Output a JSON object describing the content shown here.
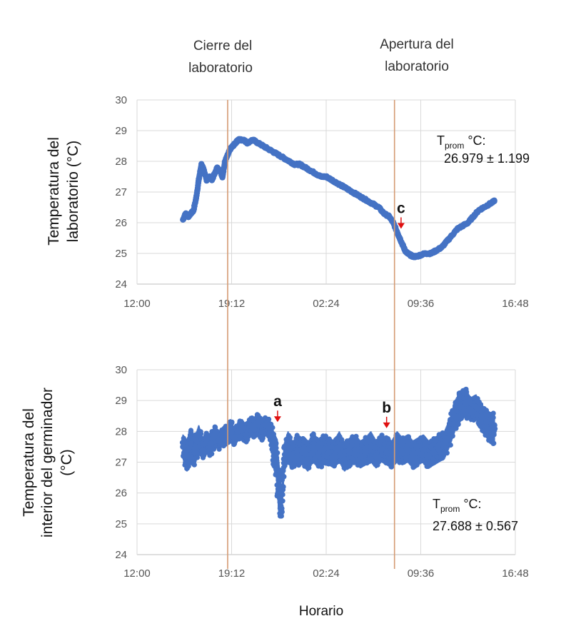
{
  "annotations": {
    "close_label": [
      "Cierre del",
      "laboratorio"
    ],
    "open_label": [
      "Apertura del",
      "laboratorio"
    ]
  },
  "x_common_label": "Horario",
  "colors": {
    "series": "#4472C4",
    "vline": "#D59B73",
    "arrow": "#E01010",
    "grid": "#D9D9D9",
    "axis": "#BFBFBF"
  },
  "chart_data": [
    {
      "type": "scatter",
      "title": "",
      "ylabel_lines": [
        "Temperatura del",
        "laboratorio  (°C)"
      ],
      "xlabel": "Horario",
      "x_unit": "hours since 12:00",
      "xlim": [
        0,
        28.8
      ],
      "ylim": [
        24,
        30
      ],
      "x_ticks": [
        0,
        7.2,
        14.4,
        21.6,
        28.8
      ],
      "x_tick_labels": [
        "12:00",
        "19:12",
        "02:24",
        "09:36",
        "16:48"
      ],
      "y_ticks": [
        24,
        25,
        26,
        27,
        28,
        29,
        30
      ],
      "y_tick_labels": [
        "24",
        "25",
        "26",
        "27",
        "28",
        "29",
        "30"
      ],
      "series": [
        {
          "name": "Temperatura del laboratorio",
          "x": [
            3.5,
            3.7,
            3.9,
            4.1,
            4.3,
            4.5,
            4.7,
            4.9,
            5.1,
            5.3,
            5.5,
            5.7,
            5.9,
            6.1,
            6.3,
            6.5,
            6.7,
            6.9,
            7.1,
            7.3,
            7.5,
            7.7,
            7.9,
            8.1,
            8.4,
            8.8,
            9.2,
            9.6,
            10.0,
            10.4,
            10.8,
            11.2,
            11.6,
            12.0,
            12.4,
            12.8,
            13.2,
            13.6,
            14.0,
            14.4,
            14.8,
            15.2,
            15.6,
            16.0,
            16.4,
            16.8,
            17.2,
            17.6,
            18.0,
            18.4,
            18.8,
            19.2,
            19.5,
            19.8,
            20.0,
            20.2,
            20.4,
            20.6,
            20.8,
            21.0,
            21.3,
            21.6,
            22.0,
            22.4,
            22.8,
            23.2,
            23.6,
            24.0,
            24.4,
            24.8,
            25.2,
            25.6,
            26.0,
            26.4,
            26.8,
            27.2
          ],
          "y": [
            26.1,
            26.3,
            26.2,
            26.3,
            26.4,
            26.8,
            27.4,
            27.9,
            27.7,
            27.4,
            27.5,
            27.4,
            27.6,
            27.8,
            27.7,
            27.5,
            28.0,
            28.2,
            28.4,
            28.5,
            28.6,
            28.7,
            28.7,
            28.7,
            28.6,
            28.7,
            28.6,
            28.5,
            28.4,
            28.3,
            28.2,
            28.1,
            28.0,
            27.9,
            27.9,
            27.8,
            27.7,
            27.6,
            27.5,
            27.5,
            27.4,
            27.3,
            27.2,
            27.1,
            27.0,
            26.9,
            26.8,
            26.7,
            26.6,
            26.5,
            26.3,
            26.2,
            26.0,
            25.7,
            25.5,
            25.3,
            25.1,
            25.0,
            24.95,
            24.9,
            24.9,
            24.95,
            25.0,
            25.0,
            25.1,
            25.2,
            25.4,
            25.6,
            25.8,
            25.9,
            26.0,
            26.2,
            26.4,
            26.5,
            26.6,
            26.7
          ]
        }
      ],
      "stat": {
        "label": "T",
        "sub": "prom",
        "unit": " °C:",
        "value": "26.979 ± 1.199"
      },
      "markers": [
        {
          "letter": "c",
          "x": 20.1,
          "y": 25.85
        }
      ],
      "vlines": [
        {
          "x": 6.9
        },
        {
          "x": 19.6
        }
      ]
    },
    {
      "type": "scatter",
      "title": "",
      "ylabel_lines": [
        "Temperatura del",
        "interior del germinador",
        "(°C)"
      ],
      "xlabel": "Horario",
      "x_unit": "hours since 12:00",
      "xlim": [
        0,
        28.8
      ],
      "ylim": [
        24,
        30
      ],
      "x_ticks": [
        0,
        7.2,
        14.4,
        21.6,
        28.8
      ],
      "x_tick_labels": [
        "12:00",
        "19:12",
        "02:24",
        "09:36",
        "16:48"
      ],
      "y_ticks": [
        24,
        25,
        26,
        27,
        28,
        29,
        30
      ],
      "y_tick_labels": [
        "24",
        "25",
        "26",
        "27",
        "28",
        "29",
        "30"
      ],
      "series": [
        {
          "name": "Temperatura del interior del germinador",
          "x": [
            3.5,
            3.8,
            4.1,
            4.4,
            4.7,
            5.0,
            5.3,
            5.6,
            5.9,
            6.2,
            6.5,
            6.8,
            7.1,
            7.4,
            7.7,
            8.0,
            8.3,
            8.6,
            8.9,
            9.2,
            9.5,
            9.8,
            10.1,
            10.4,
            10.6,
            10.8,
            11.0,
            11.2,
            11.5,
            11.8,
            12.2,
            12.6,
            13.0,
            13.4,
            13.8,
            14.2,
            14.6,
            15.0,
            15.4,
            15.8,
            16.2,
            16.6,
            17.0,
            17.4,
            17.8,
            18.2,
            18.6,
            19.0,
            19.4,
            19.8,
            20.2,
            20.6,
            21.0,
            21.4,
            21.8,
            22.2,
            22.6,
            23.0,
            23.4,
            23.8,
            24.2,
            24.6,
            25.0,
            25.4,
            25.8,
            26.2,
            26.6,
            27.0,
            27.2
          ],
          "y": [
            27.5,
            27.2,
            27.6,
            27.3,
            27.9,
            27.4,
            27.7,
            27.6,
            27.9,
            27.7,
            27.8,
            27.9,
            28.0,
            27.8,
            28.0,
            28.1,
            27.9,
            28.2,
            28.1,
            28.3,
            28.0,
            28.2,
            28.1,
            27.4,
            27.0,
            26.2,
            25.5,
            27.1,
            27.5,
            27.2,
            27.4,
            27.3,
            27.1,
            27.5,
            27.2,
            27.4,
            27.3,
            27.2,
            27.5,
            27.1,
            27.3,
            27.4,
            27.2,
            27.3,
            27.5,
            27.2,
            27.4,
            27.3,
            27.2,
            27.5,
            27.3,
            27.4,
            27.2,
            27.3,
            27.4,
            27.2,
            27.3,
            27.4,
            27.6,
            28.0,
            28.5,
            28.8,
            28.9,
            28.7,
            28.8,
            28.5,
            28.3,
            28.1,
            28.2
          ],
          "y_low": [
            27.1,
            26.7,
            27.0,
            26.9,
            27.3,
            27.1,
            27.3,
            27.2,
            27.5,
            27.4,
            27.5,
            27.6,
            27.7,
            27.5,
            27.7,
            27.8,
            27.6,
            27.9,
            27.8,
            27.9,
            27.7,
            27.9,
            27.8,
            26.8,
            26.5,
            25.3,
            25.2,
            26.7,
            27.0,
            26.8,
            26.9,
            26.9,
            26.7,
            27.0,
            26.8,
            26.9,
            26.9,
            26.8,
            27.0,
            26.7,
            26.9,
            27.0,
            26.8,
            26.9,
            27.0,
            26.8,
            27.0,
            26.9,
            26.8,
            27.0,
            26.9,
            27.0,
            26.8,
            26.9,
            27.0,
            26.8,
            26.9,
            27.0,
            27.1,
            27.5,
            28.0,
            28.3,
            28.5,
            28.3,
            28.4,
            28.0,
            27.8,
            27.6,
            27.6
          ],
          "y_high": [
            27.9,
            27.6,
            28.1,
            27.8,
            28.2,
            27.8,
            28.0,
            27.9,
            28.2,
            28.0,
            28.1,
            28.2,
            28.4,
            28.1,
            28.3,
            28.4,
            28.2,
            28.5,
            28.4,
            28.6,
            28.3,
            28.5,
            28.4,
            28.0,
            27.8,
            27.0,
            26.0,
            27.6,
            28.0,
            27.6,
            27.9,
            27.8,
            27.6,
            28.0,
            27.7,
            27.9,
            27.8,
            27.7,
            28.0,
            27.6,
            27.8,
            27.9,
            27.7,
            27.8,
            28.0,
            27.7,
            27.9,
            27.8,
            27.7,
            28.0,
            27.8,
            27.9,
            27.7,
            27.8,
            27.9,
            27.7,
            27.8,
            27.9,
            28.0,
            28.4,
            29.0,
            29.3,
            29.4,
            29.1,
            29.2,
            28.9,
            28.7,
            28.6,
            28.6
          ]
        }
      ],
      "stat": {
        "label": "T",
        "sub": "prom",
        "unit": " °C:",
        "value": "27.688 ± 0.567"
      },
      "markers": [
        {
          "letter": "a",
          "x": 10.7,
          "y": 28.35
        },
        {
          "letter": "b",
          "x": 19.0,
          "y": 28.15
        }
      ],
      "vlines": [
        {
          "x": 6.9
        },
        {
          "x": 19.6
        }
      ]
    }
  ]
}
